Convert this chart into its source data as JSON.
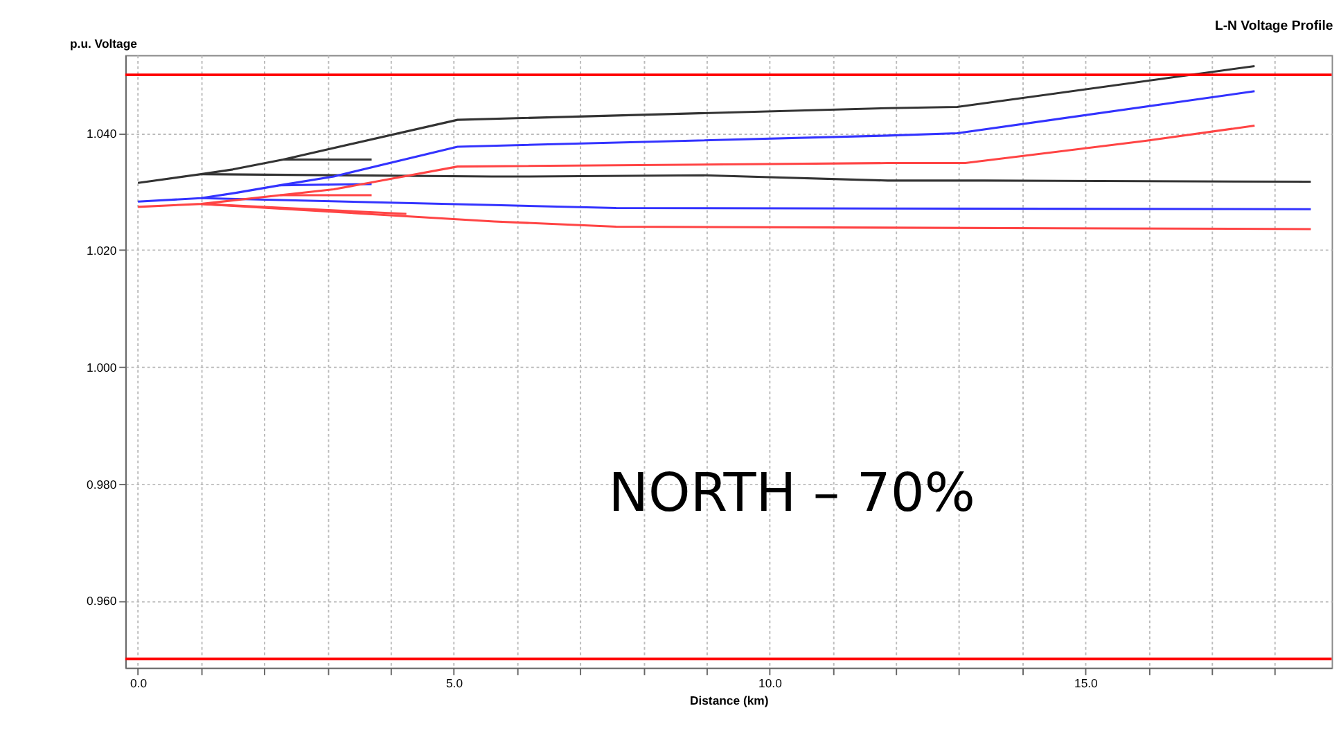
{
  "chart_data": {
    "type": "line",
    "title": "L-N Voltage Profile",
    "xlabel": "Distance (km)",
    "ylabel": "p.u. Voltage",
    "annotations": [
      "NORTH – 70%"
    ],
    "xlim": [
      -0.2,
      18.9
    ],
    "ylim": [
      0.9485,
      1.0534
    ],
    "xticks": [
      {
        "value": 0,
        "label": "0.0"
      },
      {
        "value": 1,
        "label": null
      },
      {
        "value": 2,
        "label": null
      },
      {
        "value": 3,
        "label": null
      },
      {
        "value": 4,
        "label": null
      },
      {
        "value": 5,
        "label": "5.0"
      },
      {
        "value": 6,
        "label": null
      },
      {
        "value": 7,
        "label": null
      },
      {
        "value": 8,
        "label": null
      },
      {
        "value": 9,
        "label": null
      },
      {
        "value": 10,
        "label": "10.0"
      },
      {
        "value": 11,
        "label": null
      },
      {
        "value": 12,
        "label": null
      },
      {
        "value": 13,
        "label": null
      },
      {
        "value": 14,
        "label": null
      },
      {
        "value": 15,
        "label": "15.0"
      },
      {
        "value": 16,
        "label": null
      },
      {
        "value": 17,
        "label": null
      },
      {
        "value": 18,
        "label": null
      }
    ],
    "yticks": [
      {
        "value": 0.96,
        "label": "0.960"
      },
      {
        "value": 0.98,
        "label": "0.980"
      },
      {
        "value": 1.0,
        "label": "1.000"
      },
      {
        "value": 1.02,
        "label": "1.020"
      },
      {
        "value": 1.04,
        "label": "1.040"
      }
    ],
    "grid": true,
    "legend": false,
    "marker": "none",
    "line_style": "solid",
    "ref_lines": [
      {
        "axis": "y",
        "value": 1.05,
        "color": "#ff0000"
      },
      {
        "axis": "y",
        "value": 0.95,
        "color": "#ff0000"
      }
    ],
    "series": [
      {
        "color": "#333333",
        "x": [
          0,
          0.2,
          1.0,
          1.5,
          2.3,
          5.06,
          11.87,
          12.97,
          17.68
        ],
        "values": [
          1.0315,
          1.0318,
          1.033,
          1.0338,
          1.0355,
          1.0423,
          1.0443,
          1.0445,
          1.0515
        ]
      },
      {
        "color": "#333333",
        "x": [
          1.0,
          5.6,
          6.2,
          8.96,
          11.87,
          13.4,
          18.57
        ],
        "values": [
          1.033,
          1.0326,
          1.0326,
          1.0328,
          1.0319,
          1.0319,
          1.0317
        ]
      },
      {
        "color": "#333333",
        "x": [
          2.3,
          3.7
        ],
        "values": [
          1.0355,
          1.0355
        ]
      },
      {
        "color": "#3333ff",
        "x": [
          0,
          1.0,
          1.55,
          2.25,
          3.1,
          5.06,
          11.87,
          12.97,
          17.68
        ],
        "values": [
          1.0283,
          1.0289,
          1.0298,
          1.0311,
          1.0326,
          1.0377,
          1.0396,
          1.04,
          1.0472
        ]
      },
      {
        "color": "#3333ff",
        "x": [
          2.25,
          3.7
        ],
        "values": [
          1.0311,
          1.0313
        ]
      },
      {
        "color": "#3333ff",
        "x": [
          1.0,
          5.64,
          7.57,
          18.57
        ],
        "values": [
          1.0289,
          1.0277,
          1.0272,
          1.027
        ]
      },
      {
        "color": "#ff4444",
        "x": [
          0,
          1.0,
          2.25,
          3.1,
          5.06,
          11.87,
          13.1,
          15.95,
          17.68
        ],
        "values": [
          1.0274,
          1.0279,
          1.0294,
          1.0304,
          1.0343,
          1.0349,
          1.0349,
          1.0387,
          1.0413
        ]
      },
      {
        "color": "#ff4444",
        "x": [
          2.25,
          3.7
        ],
        "values": [
          1.0294,
          1.0294
        ]
      },
      {
        "color": "#ff4444",
        "x": [
          1.0,
          4.25
        ],
        "values": [
          1.0279,
          1.0262
        ]
      },
      {
        "color": "#ff4444",
        "x": [
          1.0,
          5.64,
          7.57,
          18.57
        ],
        "values": [
          1.0279,
          1.0249,
          1.024,
          1.0236
        ]
      }
    ]
  }
}
